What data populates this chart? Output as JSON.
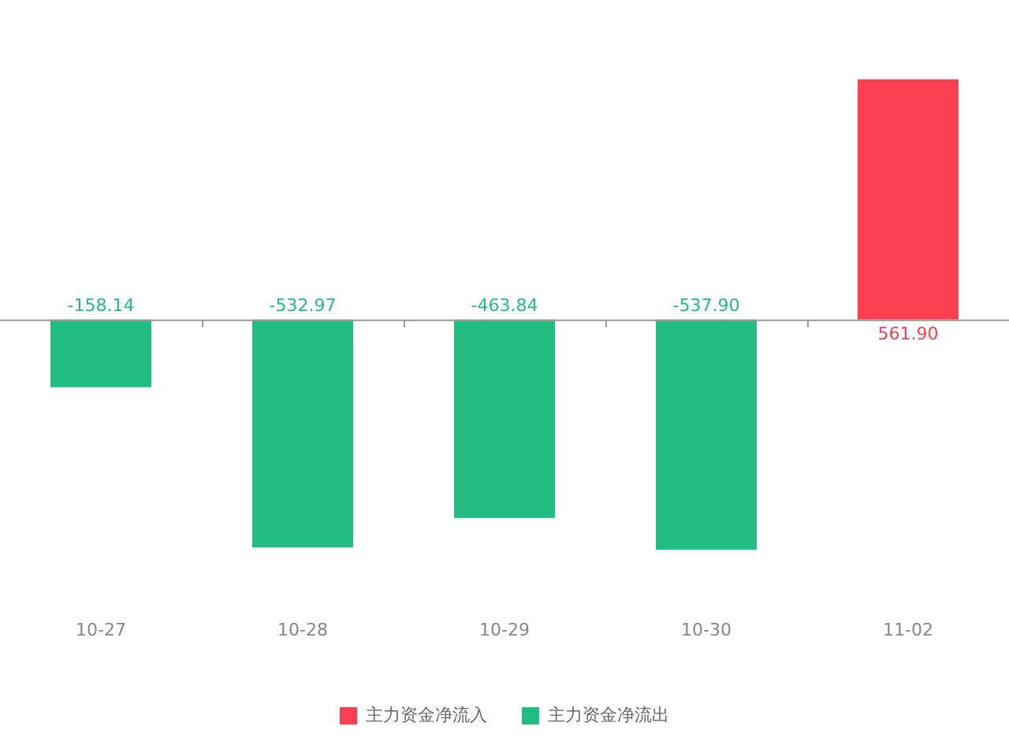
{
  "chart_data": {
    "type": "bar",
    "legend": "bottom",
    "categories": [
      "10-27",
      "10-28",
      "10-29",
      "10-30",
      "11-02"
    ],
    "series": [
      {
        "name": "主力资金净流入",
        "color": "#fa3e4f",
        "values": [
          null,
          null,
          null,
          null,
          561.9
        ],
        "value_labels": [
          null,
          null,
          null,
          null,
          "561.90"
        ]
      },
      {
        "name": "主力资金净流出",
        "color": "#22bd80",
        "values": [
          -158.14,
          -532.97,
          -463.84,
          -537.9,
          null
        ],
        "value_labels": [
          "-158.14",
          "-532.97",
          "-463.84",
          "-537.90",
          null
        ]
      }
    ]
  }
}
